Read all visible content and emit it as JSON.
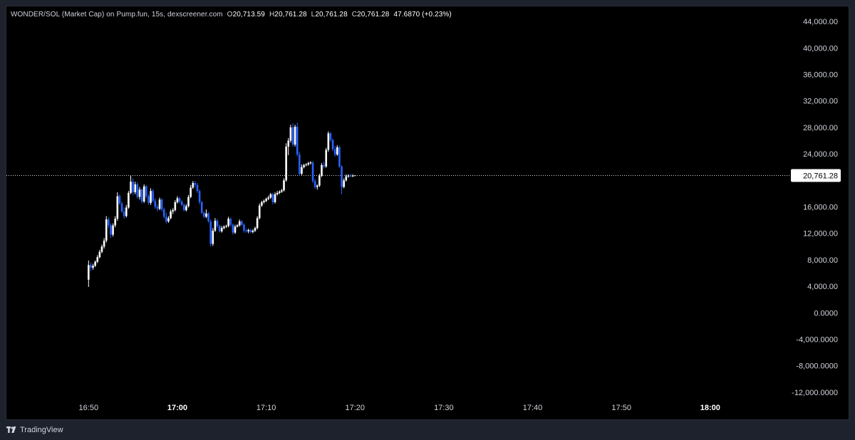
{
  "legend": {
    "title": "WONDER/SOL (Market Cap) on Pump.fun, 15s, dexscreener.com",
    "open_label": "O",
    "open": "20,713.59",
    "high_label": "H",
    "high": "20,761.28",
    "low_label": "L",
    "low": "20,761.28",
    "close_label": "C",
    "close": "20,761.28",
    "change": "47.6870 (+0.23%)"
  },
  "price_badge": "20,761.28",
  "brand": "TradingView",
  "colors": {
    "background": "#000000",
    "frame": "#1e222d",
    "up_candle": "#ffffff",
    "down_candle": "#2962ff",
    "axis_text": "#d1d4dc",
    "price_line": "#ffffff"
  },
  "chart_data": {
    "type": "candlestick",
    "y_ticks": [
      "44,000.00",
      "40,000.00",
      "36,000.00",
      "32,000.00",
      "28,000.00",
      "24,000.00",
      "20,761.28",
      "16,000.00",
      "12,000.00",
      "8,000.00",
      "4,000.00",
      "0.0000",
      "-4,000.0000",
      "-8,000.0000",
      "-12,000.0000"
    ],
    "y_tick_values": [
      44000,
      40000,
      36000,
      32000,
      28000,
      24000,
      null,
      16000,
      12000,
      8000,
      4000,
      0,
      -4000,
      -8000,
      -12000
    ],
    "x_ticks": [
      {
        "label": "16:50",
        "time": "16:50",
        "bold": false
      },
      {
        "label": "17:00",
        "time": "17:00",
        "bold": true
      },
      {
        "label": "17:10",
        "time": "17:10",
        "bold": false
      },
      {
        "label": "17:20",
        "time": "17:20",
        "bold": false
      },
      {
        "label": "17:30",
        "time": "17:30",
        "bold": false
      },
      {
        "label": "17:40",
        "time": "17:40",
        "bold": false
      },
      {
        "label": "17:50",
        "time": "17:50",
        "bold": false
      },
      {
        "label": "18:00",
        "time": "18:00",
        "bold": true
      }
    ],
    "ylim": [
      -13200,
      45200
    ],
    "x_range": [
      "16:40:45",
      "18:09:00"
    ],
    "last_price": 20761.28,
    "interval": "15s",
    "candles": [
      {
        "t": "16:50:00",
        "o": 5000,
        "h": 7900,
        "l": 3900,
        "c": 7200
      },
      {
        "t": "16:50:15",
        "o": 7200,
        "h": 7600,
        "l": 6300,
        "c": 6800
      },
      {
        "t": "16:50:30",
        "o": 6800,
        "h": 7400,
        "l": 6500,
        "c": 7100
      },
      {
        "t": "16:50:45",
        "o": 7100,
        "h": 7900,
        "l": 6900,
        "c": 7700
      },
      {
        "t": "16:51:00",
        "o": 7700,
        "h": 8700,
        "l": 7500,
        "c": 8400
      },
      {
        "t": "16:51:15",
        "o": 8400,
        "h": 9500,
        "l": 8200,
        "c": 9200
      },
      {
        "t": "16:51:30",
        "o": 9200,
        "h": 10300,
        "l": 9000,
        "c": 10000
      },
      {
        "t": "16:51:45",
        "o": 10000,
        "h": 11300,
        "l": 9700,
        "c": 10900
      },
      {
        "t": "16:52:00",
        "o": 10900,
        "h": 14600,
        "l": 10600,
        "c": 14100
      },
      {
        "t": "16:52:15",
        "o": 14100,
        "h": 14400,
        "l": 12800,
        "c": 13200
      },
      {
        "t": "16:52:30",
        "o": 13200,
        "h": 13500,
        "l": 11300,
        "c": 11800
      },
      {
        "t": "16:52:45",
        "o": 11800,
        "h": 13500,
        "l": 11500,
        "c": 13200
      },
      {
        "t": "16:53:00",
        "o": 13200,
        "h": 14600,
        "l": 12900,
        "c": 14200
      },
      {
        "t": "16:53:15",
        "o": 14200,
        "h": 18200,
        "l": 13900,
        "c": 17600
      },
      {
        "t": "16:53:30",
        "o": 17600,
        "h": 17900,
        "l": 16300,
        "c": 16500
      },
      {
        "t": "16:53:45",
        "o": 16500,
        "h": 16800,
        "l": 15100,
        "c": 15300
      },
      {
        "t": "16:54:00",
        "o": 15300,
        "h": 15900,
        "l": 14200,
        "c": 14600
      },
      {
        "t": "16:54:15",
        "o": 14600,
        "h": 16300,
        "l": 14400,
        "c": 15900
      },
      {
        "t": "16:54:30",
        "o": 15900,
        "h": 18400,
        "l": 15700,
        "c": 18100
      },
      {
        "t": "16:54:45",
        "o": 18100,
        "h": 20700,
        "l": 17900,
        "c": 19800
      },
      {
        "t": "16:55:00",
        "o": 19800,
        "h": 20300,
        "l": 17800,
        "c": 18200
      },
      {
        "t": "16:55:15",
        "o": 18200,
        "h": 19800,
        "l": 17900,
        "c": 19400
      },
      {
        "t": "16:55:30",
        "o": 19400,
        "h": 19700,
        "l": 17200,
        "c": 17500
      },
      {
        "t": "16:55:45",
        "o": 17500,
        "h": 19000,
        "l": 17100,
        "c": 18600
      },
      {
        "t": "16:56:00",
        "o": 18600,
        "h": 18800,
        "l": 16500,
        "c": 16800
      },
      {
        "t": "16:56:15",
        "o": 16800,
        "h": 19400,
        "l": 16600,
        "c": 19100
      },
      {
        "t": "16:56:30",
        "o": 19100,
        "h": 19300,
        "l": 17300,
        "c": 17600
      },
      {
        "t": "16:56:45",
        "o": 17600,
        "h": 17900,
        "l": 16300,
        "c": 16600
      },
      {
        "t": "16:57:00",
        "o": 16600,
        "h": 18800,
        "l": 16300,
        "c": 18400
      },
      {
        "t": "16:57:15",
        "o": 18400,
        "h": 18700,
        "l": 16700,
        "c": 16900
      },
      {
        "t": "16:57:30",
        "o": 16900,
        "h": 17300,
        "l": 15700,
        "c": 16000
      },
      {
        "t": "16:57:45",
        "o": 16000,
        "h": 16400,
        "l": 15300,
        "c": 15700
      },
      {
        "t": "16:58:00",
        "o": 15700,
        "h": 17400,
        "l": 15500,
        "c": 17100
      },
      {
        "t": "16:58:15",
        "o": 17100,
        "h": 17300,
        "l": 15300,
        "c": 15600
      },
      {
        "t": "16:58:30",
        "o": 15600,
        "h": 15900,
        "l": 14200,
        "c": 14500
      },
      {
        "t": "16:58:45",
        "o": 14500,
        "h": 15100,
        "l": 13500,
        "c": 13800
      },
      {
        "t": "16:59:00",
        "o": 13800,
        "h": 14600,
        "l": 13600,
        "c": 14300
      },
      {
        "t": "16:59:15",
        "o": 14300,
        "h": 15600,
        "l": 14100,
        "c": 15300
      },
      {
        "t": "16:59:30",
        "o": 15300,
        "h": 15800,
        "l": 14900,
        "c": 15500
      },
      {
        "t": "16:59:45",
        "o": 15500,
        "h": 17000,
        "l": 15300,
        "c": 16700
      },
      {
        "t": "17:00:00",
        "o": 16700,
        "h": 17600,
        "l": 16500,
        "c": 17300
      },
      {
        "t": "17:00:15",
        "o": 17300,
        "h": 17500,
        "l": 16500,
        "c": 16800
      },
      {
        "t": "17:00:30",
        "o": 16800,
        "h": 17000,
        "l": 16100,
        "c": 16300
      },
      {
        "t": "17:00:45",
        "o": 16300,
        "h": 16500,
        "l": 15300,
        "c": 15500
      },
      {
        "t": "17:01:00",
        "o": 15500,
        "h": 16400,
        "l": 15300,
        "c": 16100
      },
      {
        "t": "17:01:15",
        "o": 16100,
        "h": 17800,
        "l": 15900,
        "c": 17500
      },
      {
        "t": "17:01:30",
        "o": 17500,
        "h": 19300,
        "l": 17300,
        "c": 18900
      },
      {
        "t": "17:01:45",
        "o": 18900,
        "h": 19900,
        "l": 18700,
        "c": 19600
      },
      {
        "t": "17:02:00",
        "o": 19600,
        "h": 19900,
        "l": 18900,
        "c": 19300
      },
      {
        "t": "17:02:15",
        "o": 19300,
        "h": 19600,
        "l": 18100,
        "c": 18400
      },
      {
        "t": "17:02:30",
        "o": 18400,
        "h": 18600,
        "l": 16400,
        "c": 16700
      },
      {
        "t": "17:02:45",
        "o": 16700,
        "h": 16900,
        "l": 14900,
        "c": 15100
      },
      {
        "t": "17:03:00",
        "o": 15100,
        "h": 15300,
        "l": 14300,
        "c": 14500
      },
      {
        "t": "17:03:15",
        "o": 14500,
        "h": 15600,
        "l": 14300,
        "c": 15000
      },
      {
        "t": "17:03:30",
        "o": 15000,
        "h": 15200,
        "l": 13600,
        "c": 13800
      },
      {
        "t": "17:03:45",
        "o": 13800,
        "h": 14100,
        "l": 10000,
        "c": 10400
      },
      {
        "t": "17:04:00",
        "o": 10400,
        "h": 12800,
        "l": 10100,
        "c": 12400
      },
      {
        "t": "17:04:15",
        "o": 12400,
        "h": 14300,
        "l": 12200,
        "c": 13900
      },
      {
        "t": "17:04:30",
        "o": 13900,
        "h": 14200,
        "l": 12800,
        "c": 13100
      },
      {
        "t": "17:04:45",
        "o": 13100,
        "h": 13300,
        "l": 12100,
        "c": 12300
      },
      {
        "t": "17:05:00",
        "o": 12300,
        "h": 13100,
        "l": 12100,
        "c": 12800
      },
      {
        "t": "17:05:15",
        "o": 12800,
        "h": 13200,
        "l": 12600,
        "c": 13000
      },
      {
        "t": "17:05:30",
        "o": 13000,
        "h": 13300,
        "l": 12800,
        "c": 13100
      },
      {
        "t": "17:05:45",
        "o": 13100,
        "h": 14500,
        "l": 12900,
        "c": 14200
      },
      {
        "t": "17:06:00",
        "o": 14200,
        "h": 14400,
        "l": 13000,
        "c": 13300
      },
      {
        "t": "17:06:15",
        "o": 13300,
        "h": 13500,
        "l": 11800,
        "c": 12100
      },
      {
        "t": "17:06:30",
        "o": 12100,
        "h": 13300,
        "l": 11900,
        "c": 13000
      },
      {
        "t": "17:06:45",
        "o": 13000,
        "h": 13400,
        "l": 12900,
        "c": 13200
      },
      {
        "t": "17:07:00",
        "o": 13200,
        "h": 14100,
        "l": 13000,
        "c": 13800
      },
      {
        "t": "17:07:15",
        "o": 13800,
        "h": 14000,
        "l": 13100,
        "c": 13300
      },
      {
        "t": "17:07:30",
        "o": 13300,
        "h": 13500,
        "l": 12100,
        "c": 12400
      },
      {
        "t": "17:07:45",
        "o": 12400,
        "h": 12700,
        "l": 12100,
        "c": 12300
      },
      {
        "t": "17:08:00",
        "o": 12300,
        "h": 12700,
        "l": 12000,
        "c": 12500
      },
      {
        "t": "17:08:15",
        "o": 12500,
        "h": 12700,
        "l": 12000,
        "c": 12200
      },
      {
        "t": "17:08:30",
        "o": 12200,
        "h": 12600,
        "l": 12000,
        "c": 12400
      },
      {
        "t": "17:08:45",
        "o": 12400,
        "h": 13000,
        "l": 12200,
        "c": 12800
      },
      {
        "t": "17:09:00",
        "o": 12800,
        "h": 14600,
        "l": 12600,
        "c": 14300
      },
      {
        "t": "17:09:15",
        "o": 14300,
        "h": 16500,
        "l": 14100,
        "c": 16200
      },
      {
        "t": "17:09:30",
        "o": 16200,
        "h": 16900,
        "l": 16000,
        "c": 16700
      },
      {
        "t": "17:09:45",
        "o": 16700,
        "h": 17100,
        "l": 16500,
        "c": 16900
      },
      {
        "t": "17:10:00",
        "o": 16900,
        "h": 17400,
        "l": 16700,
        "c": 17200
      },
      {
        "t": "17:10:15",
        "o": 17200,
        "h": 17700,
        "l": 17000,
        "c": 17400
      },
      {
        "t": "17:10:30",
        "o": 17400,
        "h": 18100,
        "l": 17200,
        "c": 17900
      },
      {
        "t": "17:10:45",
        "o": 17900,
        "h": 18100,
        "l": 16400,
        "c": 16700
      },
      {
        "t": "17:11:00",
        "o": 16700,
        "h": 18200,
        "l": 16500,
        "c": 17900
      },
      {
        "t": "17:11:15",
        "o": 17900,
        "h": 18400,
        "l": 17700,
        "c": 18100
      },
      {
        "t": "17:11:30",
        "o": 18100,
        "h": 18500,
        "l": 17900,
        "c": 18300
      },
      {
        "t": "17:11:45",
        "o": 18300,
        "h": 18700,
        "l": 18100,
        "c": 18500
      },
      {
        "t": "17:12:00",
        "o": 18500,
        "h": 20300,
        "l": 18300,
        "c": 20000
      },
      {
        "t": "17:12:15",
        "o": 20000,
        "h": 25600,
        "l": 19800,
        "c": 25100
      },
      {
        "t": "17:12:30",
        "o": 25100,
        "h": 26400,
        "l": 23800,
        "c": 26000
      },
      {
        "t": "17:12:45",
        "o": 26000,
        "h": 28400,
        "l": 25700,
        "c": 28000
      },
      {
        "t": "17:13:00",
        "o": 28000,
        "h": 28600,
        "l": 25100,
        "c": 25400
      },
      {
        "t": "17:13:15",
        "o": 25400,
        "h": 28400,
        "l": 25100,
        "c": 28100
      },
      {
        "t": "17:13:30",
        "o": 28100,
        "h": 28700,
        "l": 23600,
        "c": 23900
      },
      {
        "t": "17:13:45",
        "o": 23900,
        "h": 24300,
        "l": 20700,
        "c": 21000
      },
      {
        "t": "17:14:00",
        "o": 21000,
        "h": 22400,
        "l": 20800,
        "c": 22000
      },
      {
        "t": "17:14:15",
        "o": 22000,
        "h": 22500,
        "l": 21800,
        "c": 22300
      },
      {
        "t": "17:14:30",
        "o": 22300,
        "h": 22600,
        "l": 22100,
        "c": 22400
      },
      {
        "t": "17:14:45",
        "o": 22400,
        "h": 22800,
        "l": 22200,
        "c": 22600
      },
      {
        "t": "17:15:00",
        "o": 22600,
        "h": 22900,
        "l": 22400,
        "c": 22700
      },
      {
        "t": "17:15:15",
        "o": 22700,
        "h": 22900,
        "l": 19600,
        "c": 19900
      },
      {
        "t": "17:15:30",
        "o": 19900,
        "h": 20200,
        "l": 18700,
        "c": 19000
      },
      {
        "t": "17:15:45",
        "o": 19000,
        "h": 19400,
        "l": 18600,
        "c": 19200
      },
      {
        "t": "17:16:00",
        "o": 19200,
        "h": 21000,
        "l": 19000,
        "c": 20700
      },
      {
        "t": "17:16:15",
        "o": 20700,
        "h": 22600,
        "l": 20500,
        "c": 22300
      },
      {
        "t": "17:16:30",
        "o": 22300,
        "h": 22800,
        "l": 21800,
        "c": 22100
      },
      {
        "t": "17:16:45",
        "o": 22100,
        "h": 24900,
        "l": 21900,
        "c": 24600
      },
      {
        "t": "17:17:00",
        "o": 24600,
        "h": 27400,
        "l": 24300,
        "c": 27100
      },
      {
        "t": "17:17:15",
        "o": 27100,
        "h": 27300,
        "l": 25800,
        "c": 26100
      },
      {
        "t": "17:17:30",
        "o": 26100,
        "h": 26300,
        "l": 24400,
        "c": 24700
      },
      {
        "t": "17:17:45",
        "o": 24700,
        "h": 25200,
        "l": 23600,
        "c": 23900
      },
      {
        "t": "17:18:00",
        "o": 23900,
        "h": 25300,
        "l": 23700,
        "c": 25000
      },
      {
        "t": "17:18:15",
        "o": 25000,
        "h": 25200,
        "l": 21900,
        "c": 22100
      },
      {
        "t": "17:18:30",
        "o": 22100,
        "h": 22300,
        "l": 17900,
        "c": 19000
      },
      {
        "t": "17:18:45",
        "o": 19000,
        "h": 20300,
        "l": 18800,
        "c": 20000
      },
      {
        "t": "17:19:00",
        "o": 20000,
        "h": 20900,
        "l": 19800,
        "c": 20600
      },
      {
        "t": "17:19:15",
        "o": 20600,
        "h": 20900,
        "l": 20400,
        "c": 20700
      },
      {
        "t": "17:19:30",
        "o": 20700,
        "h": 21000,
        "l": 20500,
        "c": 20600
      },
      {
        "t": "17:19:45",
        "o": 20600,
        "h": 20900,
        "l": 20500,
        "c": 20714
      },
      {
        "t": "17:20:00",
        "o": 20714,
        "h": 20761,
        "l": 20761,
        "c": 20761
      }
    ]
  }
}
